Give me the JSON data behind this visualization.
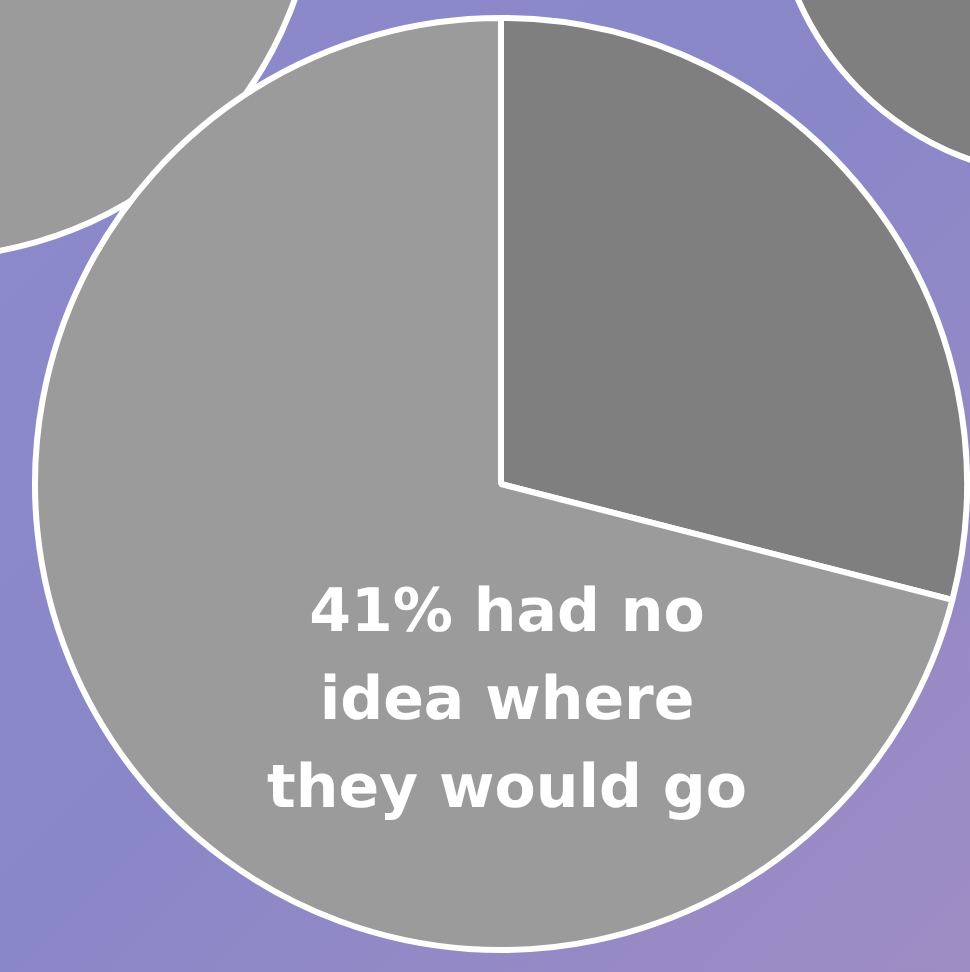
{
  "chart_data": {
    "type": "pie",
    "categories": [
      null,
      null
    ],
    "values": [
      29,
      71
    ],
    "colors": [
      "#7f7f7f",
      "#9b9b9b"
    ],
    "legend": false,
    "annotations": [
      "41% had no idea where they would go"
    ]
  }
}
